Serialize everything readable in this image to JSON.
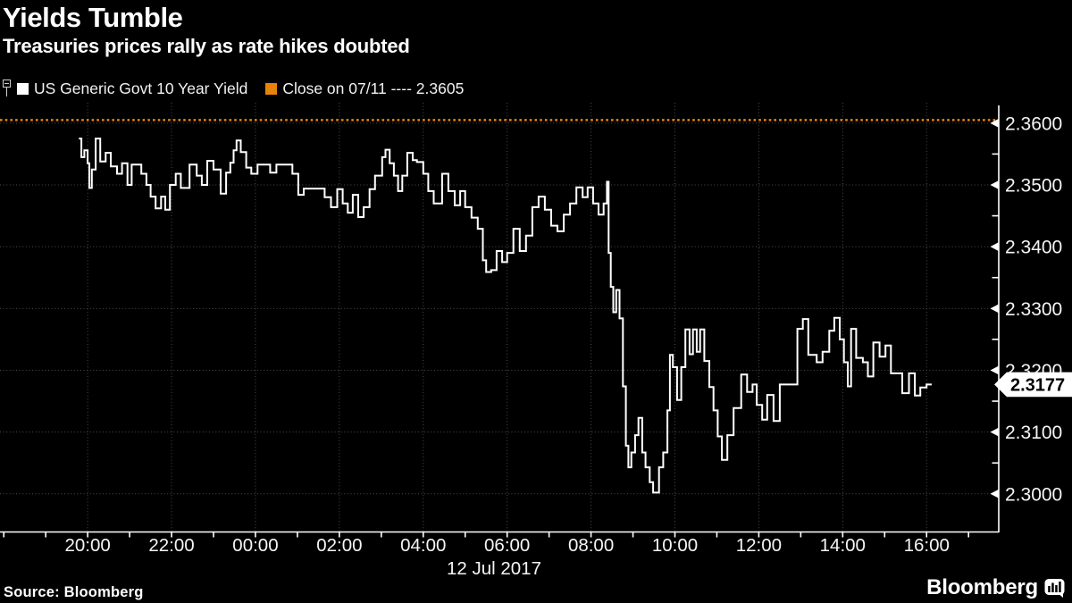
{
  "header": {
    "title": "Yields Tumble",
    "subtitle": "Treasuries prices rally as rate hikes doubted"
  },
  "legend": {
    "series_label": "US Generic Govt 10 Year Yield",
    "series_color": "#ffffff",
    "close_label": "Close on 07/11 ---- 2.3605",
    "close_color": "#e8820c"
  },
  "footer": {
    "source": "Source: Bloomberg",
    "brand": "Bloomberg",
    "brand_icon": "bloomberg-bubble-chart-icon"
  },
  "chart_data": {
    "type": "line",
    "title": "US Generic Govt 10 Year Yield intraday",
    "legend_position": "top",
    "grid": true,
    "background_color": "#000000",
    "line_color": "#ffffff",
    "last_price_label": "2.3177",
    "last_price_value": 2.3177,
    "close_line": {
      "label": "Close on 07/11",
      "value": 2.3605,
      "color": "#e8820c",
      "style": "dotted"
    },
    "x_axis": {
      "unit": "hours since 11 Jul 2017 18:00",
      "lim": [
        -0.09,
        23.72
      ],
      "date_label": "12 Jul 2017",
      "major_ticks": [
        {
          "t": 2,
          "label": "20:00"
        },
        {
          "t": 4,
          "label": "22:00"
        },
        {
          "t": 6,
          "label": "00:00"
        },
        {
          "t": 8,
          "label": "02:00"
        },
        {
          "t": 10,
          "label": "04:00"
        },
        {
          "t": 12,
          "label": "06:00"
        },
        {
          "t": 14,
          "label": "08:00"
        },
        {
          "t": 16,
          "label": "10:00"
        },
        {
          "t": 18,
          "label": "12:00"
        },
        {
          "t": 20,
          "label": "14:00"
        },
        {
          "t": 22,
          "label": "16:00"
        }
      ],
      "minor_tick_hours": [
        0,
        1,
        2,
        3,
        4,
        5,
        6,
        7,
        8,
        9,
        10,
        11,
        12,
        13,
        14,
        15,
        16,
        17,
        18,
        19,
        20,
        21,
        22,
        23
      ]
    },
    "y_axis": {
      "lim": [
        2.2939,
        2.3633
      ],
      "major_ticks": [
        {
          "value": 2.36,
          "label": "2.3600"
        },
        {
          "value": 2.35,
          "label": "2.3500"
        },
        {
          "value": 2.34,
          "label": "2.3400"
        },
        {
          "value": 2.33,
          "label": "2.3300"
        },
        {
          "value": 2.32,
          "label": "2.3200"
        },
        {
          "value": 2.31,
          "label": "2.3100"
        },
        {
          "value": 2.3,
          "label": "2.3000"
        }
      ],
      "minor_tick_values": [
        2.355,
        2.345,
        2.335,
        2.325,
        2.315,
        2.305
      ]
    },
    "series": [
      {
        "name": "US Generic Govt 10 Year Yield",
        "color": "#ffffff",
        "step": true,
        "points": [
          [
            1.79,
            2.3575
          ],
          [
            1.85,
            2.3545
          ],
          [
            1.92,
            2.3556
          ],
          [
            2.0,
            2.3535
          ],
          [
            2.04,
            2.3495
          ],
          [
            2.1,
            2.3525
          ],
          [
            2.19,
            2.3575
          ],
          [
            2.3,
            2.3538
          ],
          [
            2.43,
            2.3552
          ],
          [
            2.55,
            2.353
          ],
          [
            2.7,
            2.3518
          ],
          [
            2.82,
            2.3535
          ],
          [
            2.95,
            2.35
          ],
          [
            3.05,
            2.3533
          ],
          [
            3.28,
            2.3518
          ],
          [
            3.4,
            2.35
          ],
          [
            3.5,
            2.3481
          ],
          [
            3.62,
            2.3462
          ],
          [
            3.75,
            2.3481
          ],
          [
            3.85,
            2.346
          ],
          [
            3.96,
            2.35
          ],
          [
            4.1,
            2.3518
          ],
          [
            4.22,
            2.3495
          ],
          [
            4.43,
            2.3533
          ],
          [
            4.6,
            2.3515
          ],
          [
            4.72,
            2.35
          ],
          [
            4.85,
            2.3539
          ],
          [
            5.0,
            2.3525
          ],
          [
            5.17,
            2.3486
          ],
          [
            5.3,
            2.352
          ],
          [
            5.4,
            2.3536
          ],
          [
            5.48,
            2.3556
          ],
          [
            5.55,
            2.3572
          ],
          [
            5.65,
            2.3553
          ],
          [
            5.78,
            2.3528
          ],
          [
            5.9,
            2.3518
          ],
          [
            6.05,
            2.3533
          ],
          [
            6.35,
            2.352
          ],
          [
            6.5,
            2.3533
          ],
          [
            6.88,
            2.3518
          ],
          [
            7.02,
            2.3484
          ],
          [
            7.15,
            2.3494
          ],
          [
            7.65,
            2.348
          ],
          [
            7.8,
            2.3464
          ],
          [
            7.95,
            2.3493
          ],
          [
            8.08,
            2.347
          ],
          [
            8.2,
            2.3455
          ],
          [
            8.32,
            2.3484
          ],
          [
            8.45,
            2.3448
          ],
          [
            8.58,
            2.3464
          ],
          [
            8.72,
            2.3493
          ],
          [
            8.85,
            2.3515
          ],
          [
            9.02,
            2.3545
          ],
          [
            9.1,
            2.3557
          ],
          [
            9.2,
            2.3535
          ],
          [
            9.3,
            2.3515
          ],
          [
            9.4,
            2.349
          ],
          [
            9.5,
            2.3515
          ],
          [
            9.62,
            2.3552
          ],
          [
            9.75,
            2.354
          ],
          [
            9.85,
            2.3537
          ],
          [
            10.0,
            2.3518
          ],
          [
            10.12,
            2.349
          ],
          [
            10.25,
            2.347
          ],
          [
            10.45,
            2.3518
          ],
          [
            10.6,
            2.349
          ],
          [
            10.75,
            2.3467
          ],
          [
            10.88,
            2.349
          ],
          [
            11.0,
            2.3464
          ],
          [
            11.15,
            2.3447
          ],
          [
            11.3,
            2.3429
          ],
          [
            11.42,
            2.3378
          ],
          [
            11.5,
            2.3359
          ],
          [
            11.62,
            2.3362
          ],
          [
            11.75,
            2.3393
          ],
          [
            11.88,
            2.3375
          ],
          [
            12.0,
            2.339
          ],
          [
            12.15,
            2.3429
          ],
          [
            12.3,
            2.3393
          ],
          [
            12.45,
            2.3418
          ],
          [
            12.6,
            2.3464
          ],
          [
            12.75,
            2.3481
          ],
          [
            12.9,
            2.346
          ],
          [
            13.05,
            2.3434
          ],
          [
            13.2,
            2.3425
          ],
          [
            13.35,
            2.3452
          ],
          [
            13.5,
            2.347
          ],
          [
            13.65,
            2.3496
          ],
          [
            13.8,
            2.348
          ],
          [
            13.92,
            2.3496
          ],
          [
            14.05,
            2.347
          ],
          [
            14.18,
            2.3452
          ],
          [
            14.3,
            2.347
          ],
          [
            14.38,
            2.3505
          ],
          [
            14.42,
            2.339
          ],
          [
            14.47,
            2.3335
          ],
          [
            14.53,
            2.3294
          ],
          [
            14.6,
            2.333
          ],
          [
            14.68,
            2.3284
          ],
          [
            14.76,
            2.3174
          ],
          [
            14.83,
            2.3078
          ],
          [
            14.89,
            2.3043
          ],
          [
            14.96,
            2.3067
          ],
          [
            15.05,
            2.3095
          ],
          [
            15.13,
            2.3123
          ],
          [
            15.22,
            2.3067
          ],
          [
            15.3,
            2.3043
          ],
          [
            15.4,
            2.3019
          ],
          [
            15.48,
            2.3002
          ],
          [
            15.62,
            2.3043
          ],
          [
            15.72,
            2.3067
          ],
          [
            15.82,
            2.3135
          ],
          [
            15.88,
            2.3225
          ],
          [
            15.95,
            2.3205
          ],
          [
            16.05,
            2.3152
          ],
          [
            16.15,
            2.3205
          ],
          [
            16.25,
            2.3266
          ],
          [
            16.35,
            2.3226
          ],
          [
            16.43,
            2.3266
          ],
          [
            16.52,
            2.323
          ],
          [
            16.6,
            2.3266
          ],
          [
            16.7,
            2.3215
          ],
          [
            16.82,
            2.3173
          ],
          [
            16.92,
            2.3135
          ],
          [
            17.02,
            2.3093
          ],
          [
            17.12,
            2.3055
          ],
          [
            17.25,
            2.3095
          ],
          [
            17.4,
            2.3139
          ],
          [
            17.58,
            2.3193
          ],
          [
            17.72,
            2.3165
          ],
          [
            17.85,
            2.3177
          ],
          [
            17.95,
            2.3144
          ],
          [
            18.08,
            2.312
          ],
          [
            18.2,
            2.316
          ],
          [
            18.35,
            2.3118
          ],
          [
            18.5,
            2.3177
          ],
          [
            18.92,
            2.3267
          ],
          [
            19.05,
            2.3283
          ],
          [
            19.18,
            2.3225
          ],
          [
            19.38,
            2.3213
          ],
          [
            19.52,
            2.323
          ],
          [
            19.68,
            2.3264
          ],
          [
            19.8,
            2.3285
          ],
          [
            19.93,
            2.325
          ],
          [
            20.03,
            2.3213
          ],
          [
            20.12,
            2.3174
          ],
          [
            20.2,
            2.3267
          ],
          [
            20.32,
            2.322
          ],
          [
            20.48,
            2.3213
          ],
          [
            20.6,
            2.319
          ],
          [
            20.73,
            2.3245
          ],
          [
            20.88,
            2.3222
          ],
          [
            21.02,
            2.324
          ],
          [
            21.15,
            2.3195
          ],
          [
            21.42,
            2.3163
          ],
          [
            21.58,
            2.3195
          ],
          [
            21.72,
            2.3159
          ],
          [
            21.85,
            2.3172
          ],
          [
            22.0,
            2.3177
          ],
          [
            22.12,
            2.3177
          ]
        ]
      }
    ]
  }
}
